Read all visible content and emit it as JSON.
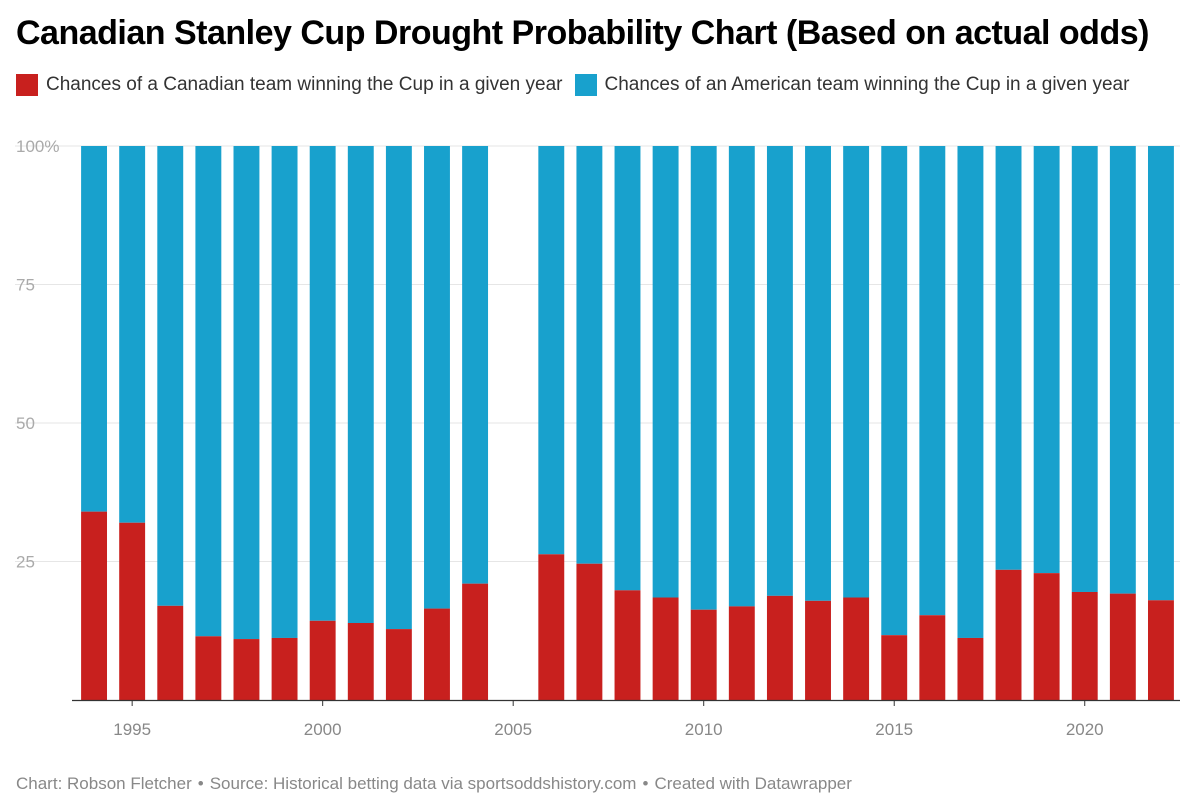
{
  "title": "Canadian Stanley Cup Drought Probability Chart (Based on actual odds)",
  "legend": [
    {
      "label": "Chances of a Canadian team winning the Cup in a given year",
      "color": "#c8201e"
    },
    {
      "label": "Chances of an American team winning the Cup in a given year",
      "color": "#18a1cd"
    }
  ],
  "footer": {
    "chart": "Chart: Robson Fletcher",
    "source": "Source: Historical betting data via sportsoddshistory.com",
    "created": "Created with Datawrapper",
    "separator": "•"
  },
  "chart_data": {
    "type": "bar",
    "stacked": true,
    "x": [
      1994,
      1995,
      1996,
      1997,
      1998,
      1999,
      2000,
      2001,
      2002,
      2003,
      2004,
      2005,
      2006,
      2007,
      2008,
      2009,
      2010,
      2011,
      2012,
      2013,
      2014,
      2015,
      2016,
      2017,
      2018,
      2019,
      2020,
      2021,
      2022
    ],
    "series": [
      {
        "name": "Chances of a Canadian team winning the Cup in a given year",
        "color": "#c8201e",
        "values": [
          34,
          32,
          17,
          11.5,
          11,
          11.2,
          14.3,
          13.9,
          12.8,
          16.5,
          21,
          null,
          26.3,
          24.6,
          19.8,
          18.5,
          16.3,
          16.9,
          18.8,
          17.9,
          18.5,
          11.7,
          15.3,
          11.2,
          23.5,
          22.9,
          19.5,
          19.2,
          18
        ],
        "note_on_null": ""
      },
      {
        "name": "Chances of an American team winning the Cup in a given year",
        "color": "#18a1cd",
        "values": [
          66,
          68,
          83,
          88.5,
          89,
          88.8,
          85.7,
          86.1,
          87.2,
          83.5,
          79,
          null,
          73.7,
          75.4,
          80.2,
          81.5,
          83.7,
          83.1,
          81.2,
          82.1,
          81.5,
          88.3,
          84.7,
          88.8,
          76.5,
          77.1,
          80.5,
          80.8,
          82
        ]
      }
    ],
    "xticks": [
      1995,
      2000,
      2005,
      2010,
      2015,
      2020
    ],
    "yticks": [
      {
        "value": 100,
        "label": "100%"
      },
      {
        "value": 75,
        "label": "75"
      },
      {
        "value": 50,
        "label": "50"
      },
      {
        "value": 25,
        "label": "25"
      }
    ],
    "ylim": [
      0,
      100
    ],
    "xlim": [
      1993.5,
      2022.5
    ],
    "grid": true
  }
}
